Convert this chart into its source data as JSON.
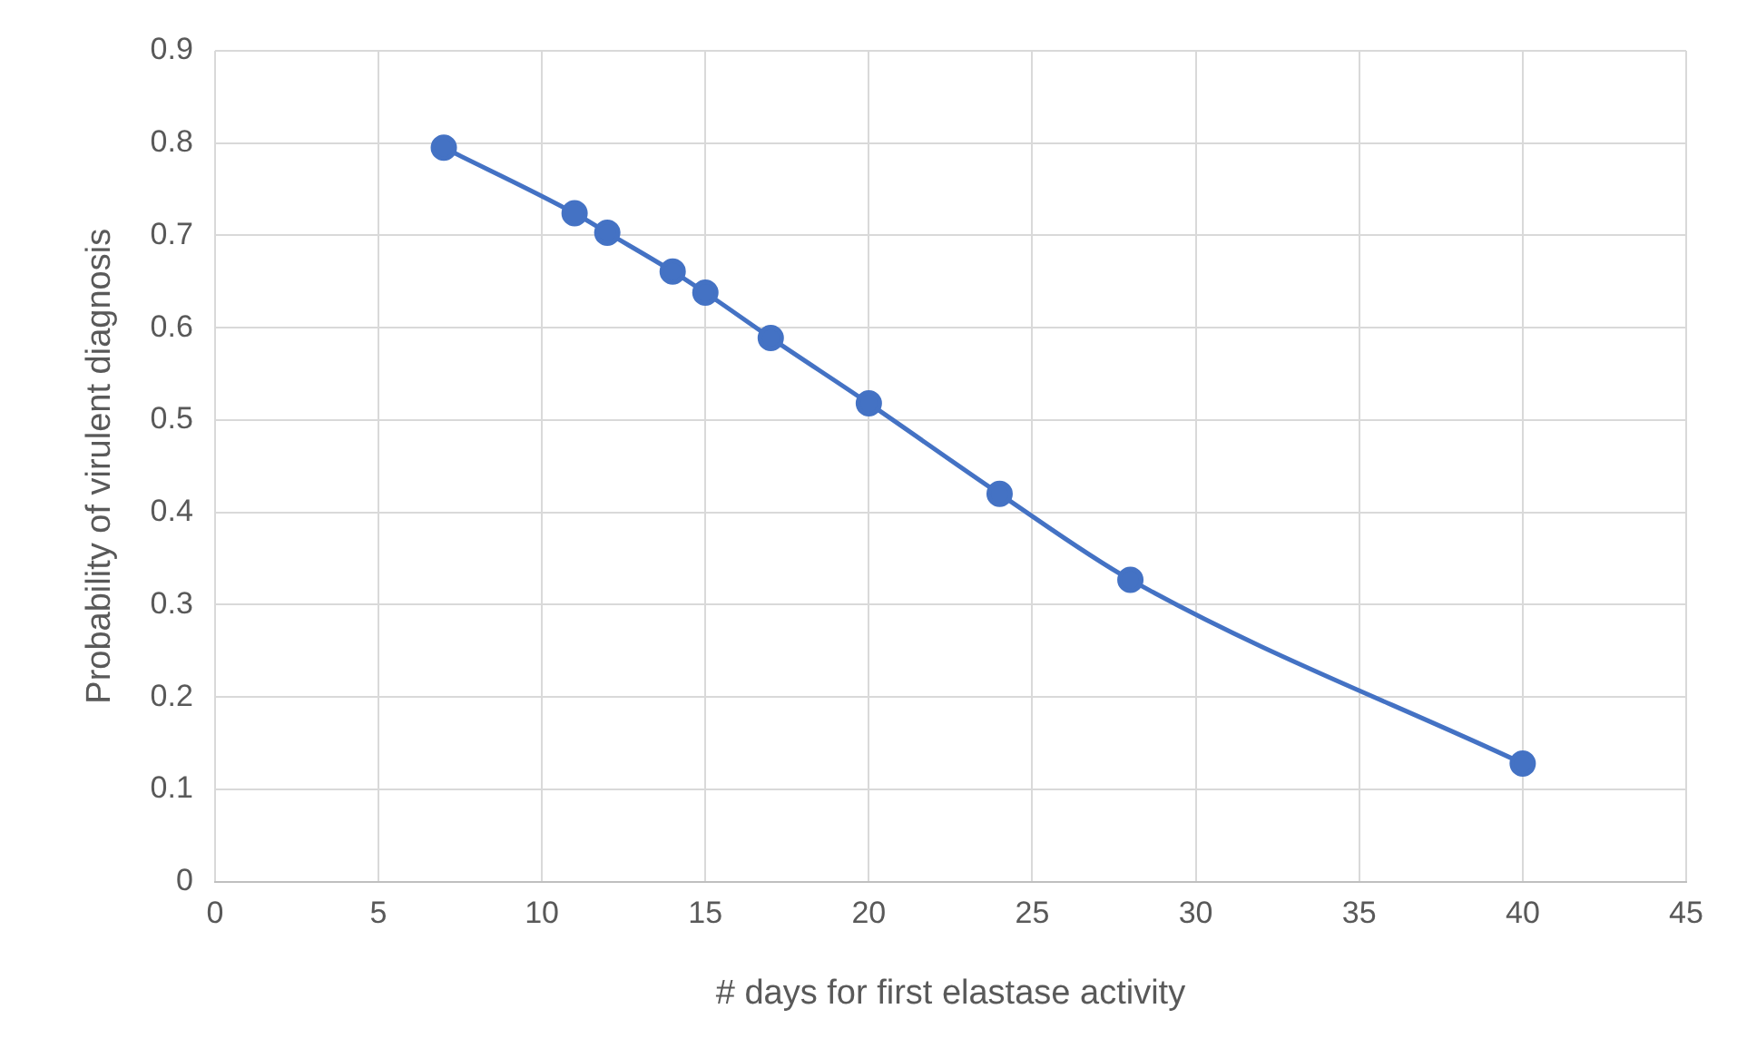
{
  "chart_data": {
    "type": "line",
    "xlabel": "# days for first elastase activity",
    "ylabel": "Probability of virulent diagnosis",
    "x": [
      7,
      11,
      12,
      14,
      15,
      17,
      20,
      24,
      28,
      40
    ],
    "series": [
      {
        "color": "#4472c4",
        "values": [
          0.795,
          0.724,
          0.703,
          0.661,
          0.638,
          0.589,
          0.518,
          0.42,
          0.327,
          0.128
        ]
      }
    ],
    "xlim": [
      0,
      45
    ],
    "xticks": [
      0,
      5,
      10,
      15,
      20,
      25,
      30,
      35,
      40,
      45
    ],
    "ylim": [
      0,
      0.9
    ],
    "yticks": [
      0,
      0.1,
      0.2,
      0.3,
      0.4,
      0.5,
      0.6,
      0.7,
      0.8,
      0.9
    ],
    "grid": true,
    "legend": false,
    "marker": "circle",
    "line_style": "solid"
  }
}
